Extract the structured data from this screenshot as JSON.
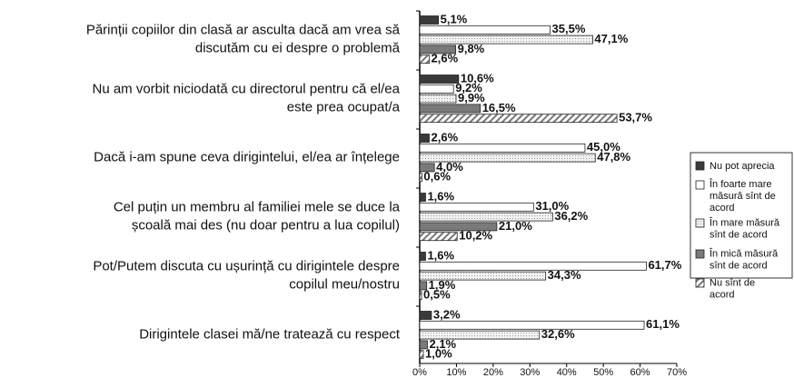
{
  "chart_data": {
    "type": "hbar",
    "categories": [
      "Părinții copiilor din clasă ar asculta dacă am vrea să\ndiscutăm cu ei despre o problemă",
      "Nu am vorbit niciodată cu directorul pentru că el/ea\neste prea ocupat/a",
      "Dacă i-am spune ceva dirigintelui, el/ea ar înțelege",
      "Cel puțin un membru al familiei mele se duce la\nșcoală mai des (nu doar pentru a lua copilul)",
      "Pot/Putem discuta cu ușurință cu dirigintele despre\ncopilul meu/nostru",
      "Dirigintele clasei mă/ne tratează cu respect"
    ],
    "series": [
      {
        "name": "Nu pot aprecia",
        "color": "#3a3a3a",
        "values": [
          5.1,
          10.6,
          2.6,
          1.6,
          1.6,
          3.2
        ],
        "value_labels": [
          "5,1%",
          "10,6%",
          "2,6%",
          "1,6%",
          "1,6%",
          "3,2%"
        ]
      },
      {
        "name": "În foarte mare\nmăsură sînt de\nacord",
        "color": "#ffffff",
        "values": [
          35.5,
          9.2,
          45.0,
          31.0,
          61.7,
          61.1
        ],
        "value_labels": [
          "35,5%",
          "9,2%",
          "45,0%",
          "31,0%",
          "61,7%",
          "61,1%"
        ]
      },
      {
        "name": "În mare măsură\nsînt de acord",
        "color": "#ececec",
        "values": [
          47.1,
          9.9,
          47.8,
          36.2,
          34.3,
          32.6
        ],
        "value_labels": [
          "47,1%",
          "9,9%",
          "47,8%",
          "36,2%",
          "34,3%",
          "32,6%"
        ]
      },
      {
        "name": "În mică măsură\nsînt de acord",
        "color": "#7a7a7a",
        "values": [
          9.8,
          16.5,
          4.0,
          21.0,
          1.9,
          2.1
        ],
        "value_labels": [
          "9,8%",
          "16,5%",
          "4,0%",
          "21,0%",
          "1,9%",
          "2,1%"
        ]
      },
      {
        "name": "Nu sînt de\nacord",
        "color": "#9a9a9a",
        "values": [
          2.6,
          53.7,
          0.6,
          10.2,
          0.5,
          1.0
        ],
        "value_labels": [
          "2,6%",
          "53,7%",
          "0,6%",
          "10,2%",
          "0,5%",
          "1,0%"
        ]
      }
    ],
    "xlim": [
      0,
      70
    ],
    "xticks": [
      {
        "value": 0,
        "label": "0%"
      },
      {
        "value": 10,
        "label": "10%"
      },
      {
        "value": 20,
        "label": "20%"
      },
      {
        "value": 30,
        "label": "30%"
      },
      {
        "value": 40,
        "label": "40%"
      },
      {
        "value": 50,
        "label": "50%"
      },
      {
        "value": 60,
        "label": "60%"
      },
      {
        "value": 70,
        "label": "70%"
      }
    ],
    "legend": "right"
  }
}
